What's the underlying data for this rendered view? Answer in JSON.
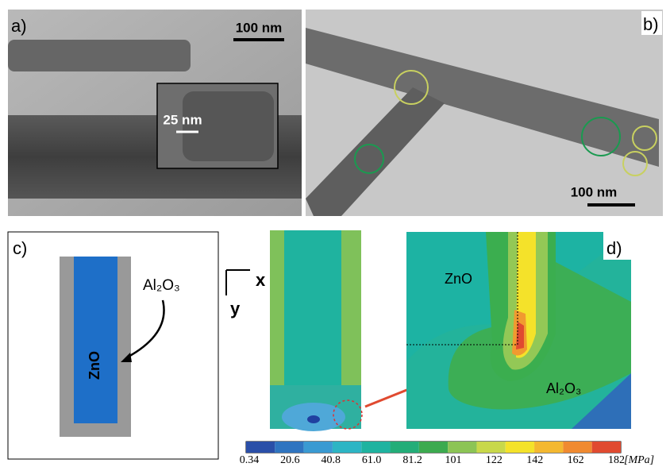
{
  "panels": {
    "a": {
      "label": "a)",
      "scale_bar": "100 nm",
      "inset_scale_bar": "25 nm"
    },
    "b": {
      "label": "b)",
      "scale_bar": "100 nm"
    },
    "c": {
      "label": "c)",
      "core": "ZnO",
      "shell": "Al₂O₃"
    },
    "axes": {
      "x": "x",
      "y": "y"
    },
    "d": {
      "label": "d)",
      "core": "ZnO",
      "shell": "Al₂O₃"
    }
  },
  "colorbar": {
    "ticks": [
      "0.34",
      "20.6",
      "40.8",
      "61.0",
      "81.2",
      "101",
      "122",
      "142",
      "162",
      "182"
    ],
    "unit": "[MPa]"
  }
}
